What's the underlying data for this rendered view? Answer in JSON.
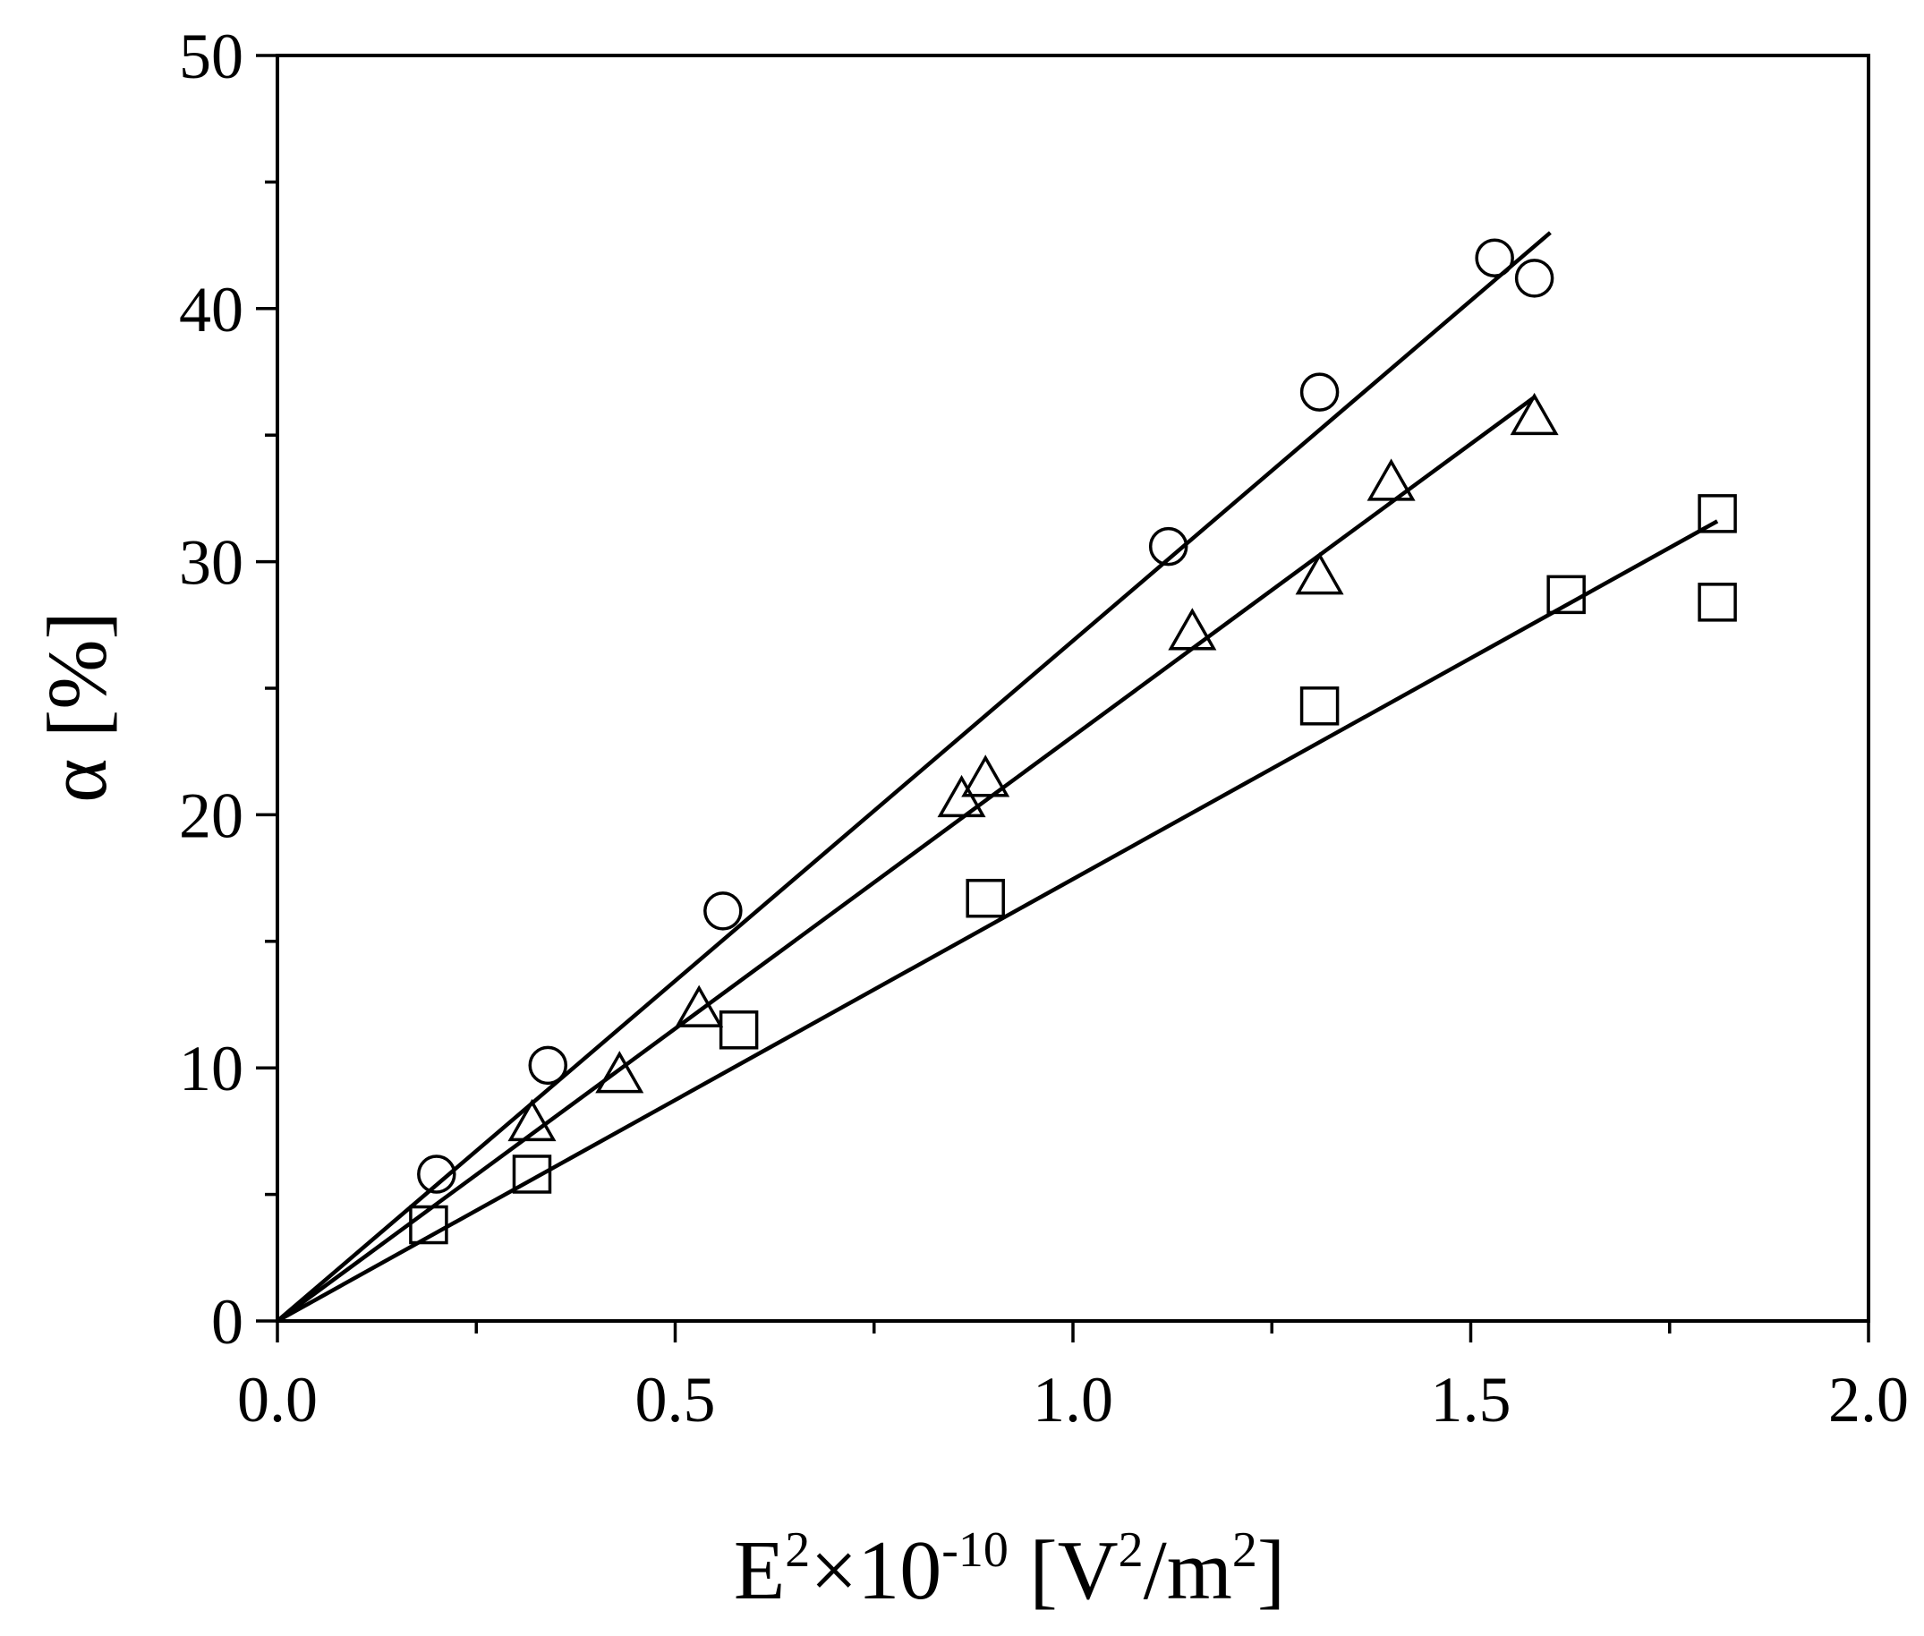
{
  "chart_data": {
    "type": "scatter",
    "xlabel": {
      "base": "E",
      "base_sup": "2",
      "mult": "×",
      "power": "10",
      "power_sup": "-10",
      "unit_open": " [V",
      "unit_sup1": "2",
      "unit_mid": "/m",
      "unit_sup2": "2",
      "unit_close": "]"
    },
    "ylabel": "α [%]",
    "xlim": [
      0.0,
      2.0
    ],
    "ylim": [
      0,
      50
    ],
    "x_ticks": [
      "0.0",
      "0.5",
      "1.0",
      "1.5",
      "2.0"
    ],
    "y_ticks": [
      "0",
      "10",
      "20",
      "30",
      "40",
      "50"
    ],
    "grid": false,
    "series": [
      {
        "marker": "circle",
        "points": [
          [
            0.2,
            5.8
          ],
          [
            0.34,
            10.1
          ],
          [
            0.56,
            16.2
          ],
          [
            1.12,
            30.6
          ],
          [
            1.31,
            36.7
          ],
          [
            1.53,
            42.0
          ],
          [
            1.58,
            41.2
          ]
        ],
        "fit": [
          [
            0.0,
            0.0
          ],
          [
            1.6,
            43.0
          ]
        ]
      },
      {
        "marker": "triangle",
        "points": [
          [
            0.32,
            7.8
          ],
          [
            0.43,
            9.7
          ],
          [
            0.53,
            12.3
          ],
          [
            0.86,
            20.6
          ],
          [
            0.89,
            21.4
          ],
          [
            1.15,
            27.2
          ],
          [
            1.31,
            29.4
          ],
          [
            1.4,
            33.1
          ],
          [
            1.58,
            35.7
          ]
        ],
        "fit": [
          [
            0.0,
            0.0
          ],
          [
            1.58,
            36.5
          ]
        ]
      },
      {
        "marker": "square",
        "points": [
          [
            0.19,
            3.8
          ],
          [
            0.32,
            5.8
          ],
          [
            0.58,
            11.5
          ],
          [
            0.89,
            16.7
          ],
          [
            1.31,
            24.3
          ],
          [
            1.62,
            28.7
          ],
          [
            1.81,
            31.9
          ],
          [
            1.81,
            28.4
          ]
        ],
        "fit": [
          [
            0.0,
            0.0
          ],
          [
            1.81,
            31.6
          ]
        ]
      }
    ]
  }
}
